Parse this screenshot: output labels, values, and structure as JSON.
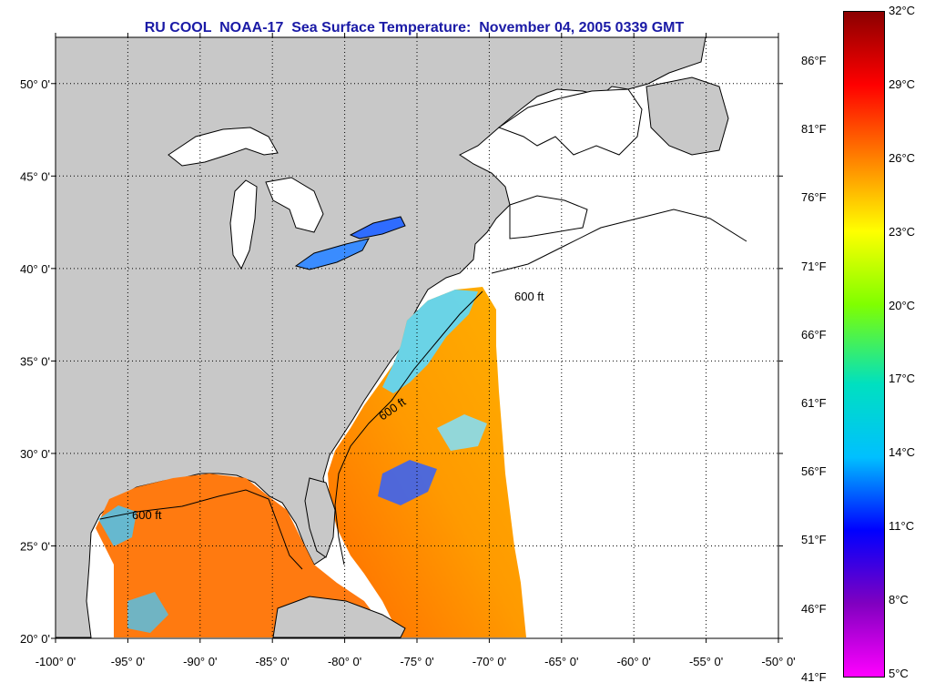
{
  "title": "RU COOL  NOAA-17  Sea Surface Temperature:  November 04, 2005 0339 GMT",
  "map": {
    "lon_min": -100,
    "lon_max": -50,
    "lat_min": 20,
    "lat_max": 52.5,
    "lon_ticks": [
      "-100° 0'",
      "-95° 0'",
      "-90° 0'",
      "-85° 0'",
      "-80° 0'",
      "-75° 0'",
      "-70° 0'",
      "-65° 0'",
      "-60° 0'",
      "-55° 0'",
      "-50° 0'"
    ],
    "lat_ticks": [
      "20° 0'",
      "25° 0'",
      "30° 0'",
      "35° 0'",
      "40° 0'",
      "45° 0'",
      "50° 0'"
    ],
    "isobath_label": "600 ft",
    "colors": {
      "land": "#c8c8c8",
      "ocean": "#ffffff",
      "coast": "#000000",
      "grid": "#000000"
    }
  },
  "colorbar": {
    "celsius": [
      "32°C",
      "29°C",
      "26°C",
      "23°C",
      "20°C",
      "17°C",
      "14°C",
      "11°C",
      "8°C",
      "5°C"
    ],
    "fahrenheit": [
      "86°F",
      "81°F",
      "76°F",
      "71°F",
      "66°F",
      "61°F",
      "56°F",
      "51°F",
      "46°F",
      "41°F"
    ],
    "colors": [
      "#8b0000",
      "#ff0000",
      "#ff8000",
      "#ffff00",
      "#80ff00",
      "#00e0c0",
      "#00c0ff",
      "#0000ff",
      "#8000c0",
      "#ff00ff"
    ]
  }
}
